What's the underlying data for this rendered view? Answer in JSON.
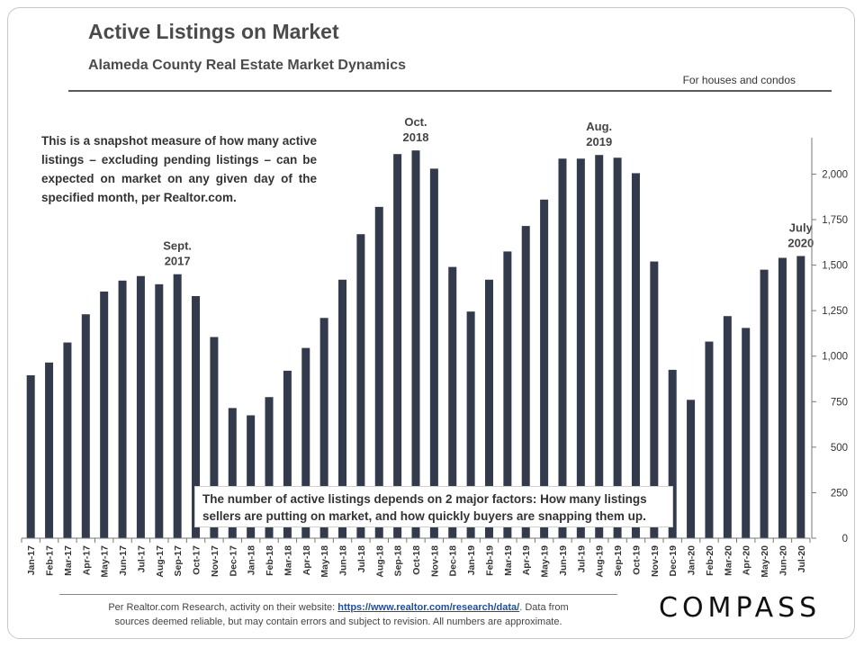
{
  "header": {
    "title": "Active Listings on Market",
    "subtitle": "Alameda County Real Estate Market Dynamics",
    "scope_note": "For houses and condos"
  },
  "description": "This is a snapshot measure of how many active listings – excluding pending listings – can be expected on market on any given day of the specified month, per Realtor.com.",
  "factors_note": {
    "line1": "The number of active listings depends on 2 major factors: How many listings",
    "line2": "sellers are putting on market, and how quickly buyers are snapping them up."
  },
  "footer": {
    "prefix": "Per Realtor.com Research, activity on their website: ",
    "link": "https://www.realtor.com/research/data/",
    "suffix": ". Data from",
    "line2": "sources deemed reliable, but may contain errors and subject to revision. All numbers are  approximate."
  },
  "logo": "COMPASS",
  "colors": {
    "bar": "#323a4c",
    "text": "#4b4b4b",
    "link": "#1f4e9c"
  },
  "chart_data": {
    "type": "bar",
    "title": "Active Listings on Market",
    "ylim": [
      0,
      2200
    ],
    "yticks": [
      0,
      250,
      500,
      750,
      1000,
      1250,
      1500,
      1750,
      2000
    ],
    "ytick_labels": [
      "0",
      "250",
      "500",
      "750",
      "1,000",
      "1,250",
      "1,500",
      "1,750",
      "2,000"
    ],
    "grid": false,
    "categories": [
      "Jan-17",
      "Feb-17",
      "Mar-17",
      "Apr-17",
      "May-17",
      "Jun-17",
      "Jul-17",
      "Aug-17",
      "Sep-17",
      "Oct-17",
      "Nov-17",
      "Dec-17",
      "Jan-18",
      "Feb-18",
      "Mar-18",
      "Apr-18",
      "May-18",
      "Jun-18",
      "Jul-18",
      "Aug-18",
      "Sep-18",
      "Oct-18",
      "Nov-18",
      "Dec-18",
      "Jan-19",
      "Feb-19",
      "Mar-19",
      "Apr-19",
      "May-19",
      "Jun-19",
      "Jul-19",
      "Aug-19",
      "Sep-19",
      "Oct-19",
      "Nov-19",
      "Dec-19",
      "Jan-20",
      "Feb-20",
      "Mar-20",
      "Apr-20",
      "May-20",
      "Jun-20",
      "Jul-20"
    ],
    "values": [
      895,
      965,
      1075,
      1230,
      1355,
      1415,
      1440,
      1395,
      1450,
      1330,
      1105,
      715,
      675,
      775,
      920,
      1045,
      1210,
      1420,
      1670,
      1820,
      2110,
      2130,
      2030,
      1490,
      1245,
      1420,
      1575,
      1715,
      1860,
      2085,
      2085,
      2105,
      2090,
      2005,
      1520,
      925,
      760,
      1080,
      1220,
      1155,
      1475,
      1540,
      1550
    ],
    "annotations": [
      {
        "index": 8,
        "lines": [
          "Sept.",
          "2017"
        ]
      },
      {
        "index": 21,
        "lines": [
          "Oct.",
          "2018"
        ]
      },
      {
        "index": 31,
        "lines": [
          "Aug.",
          "2019"
        ]
      },
      {
        "index": 42,
        "lines": [
          "July",
          "2020"
        ]
      }
    ]
  }
}
